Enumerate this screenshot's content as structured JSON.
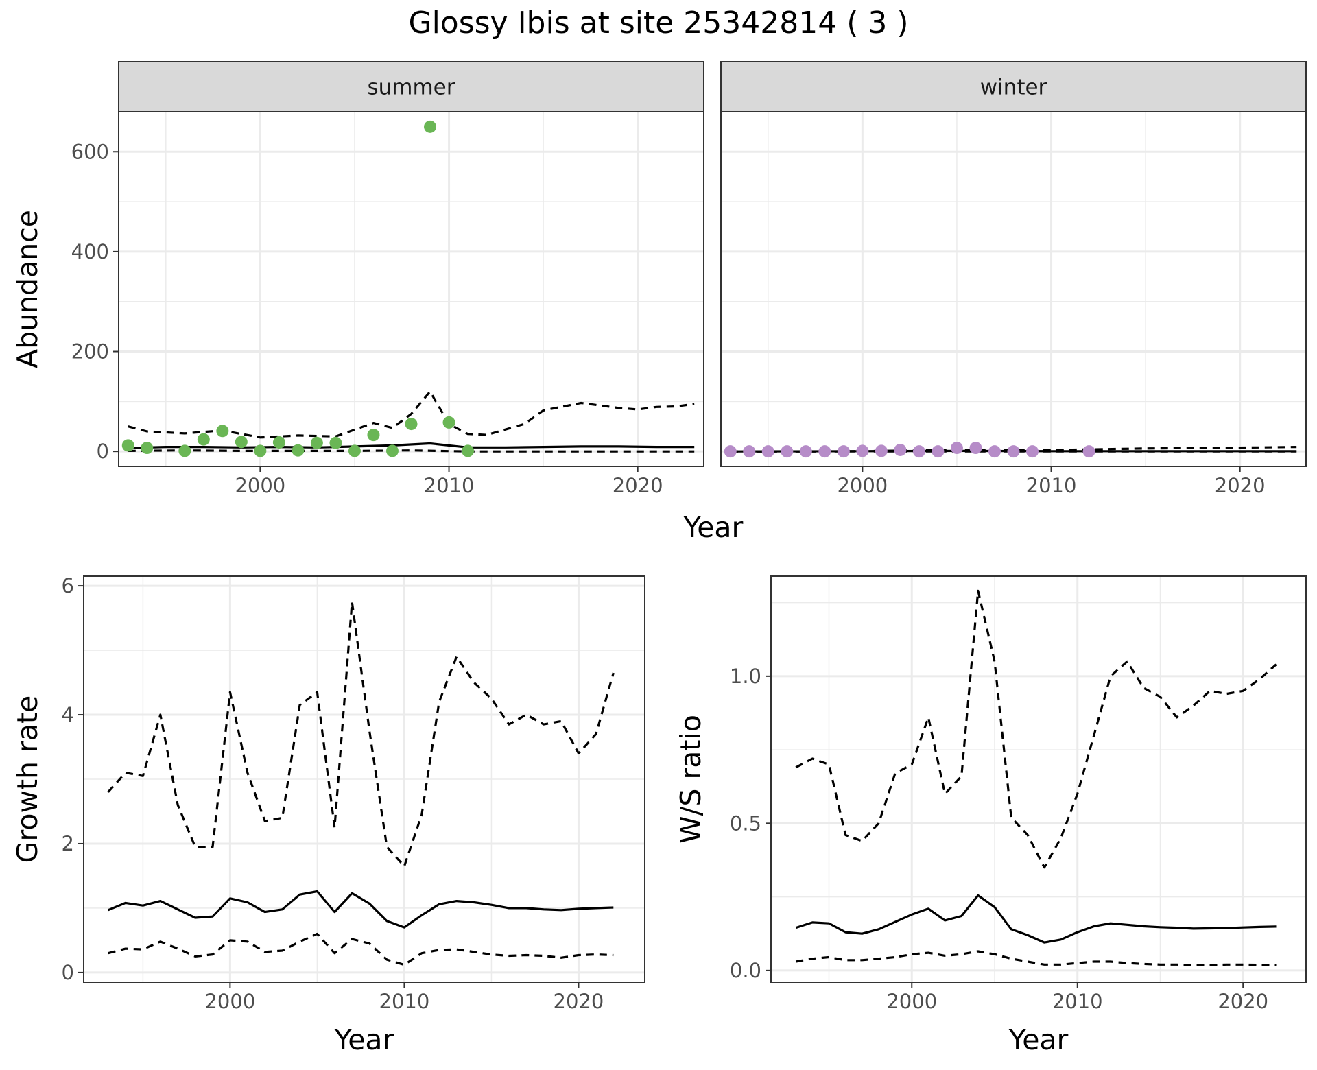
{
  "figure_title": "Glossy Ibis at site 25342814 ( 3 )",
  "colors": {
    "summer_points": "#6ab655",
    "winter_points": "#b68cc8",
    "lines": "#000000"
  },
  "chart_data": [
    {
      "type": "scatter",
      "facet": "summer",
      "title": "",
      "xlabel": "Year",
      "ylabel": "Abundance",
      "xlim": [
        1992.5,
        2023.5
      ],
      "ylim": [
        -30,
        680
      ],
      "xticks": [
        "2000",
        "2010",
        "2020"
      ],
      "yticks": [
        "0",
        "200",
        "400",
        "600"
      ],
      "grid": true,
      "points": [
        {
          "x": 1993,
          "y": 12
        },
        {
          "x": 1994,
          "y": 7
        },
        {
          "x": 1996,
          "y": 1
        },
        {
          "x": 1997,
          "y": 24
        },
        {
          "x": 1998,
          "y": 41
        },
        {
          "x": 1999,
          "y": 19
        },
        {
          "x": 2000,
          "y": 1
        },
        {
          "x": 2001,
          "y": 18
        },
        {
          "x": 2002,
          "y": 2
        },
        {
          "x": 2003,
          "y": 17
        },
        {
          "x": 2004,
          "y": 17
        },
        {
          "x": 2005,
          "y": 1
        },
        {
          "x": 2006,
          "y": 33
        },
        {
          "x": 2007,
          "y": 1
        },
        {
          "x": 2008,
          "y": 55
        },
        {
          "x": 2009,
          "y": 650
        },
        {
          "x": 2010,
          "y": 58
        },
        {
          "x": 2011,
          "y": 1
        }
      ],
      "series": [
        {
          "line": "solid",
          "x": [
            1993,
            1995,
            1997,
            1999,
            2001,
            2003,
            2005,
            2007,
            2009,
            2011,
            2013,
            2015,
            2017,
            2019,
            2021,
            2023
          ],
          "values": [
            7,
            9,
            9,
            8,
            9,
            8,
            10,
            12,
            16,
            8,
            8,
            9,
            10,
            10,
            9,
            9
          ]
        },
        {
          "line": "dashed",
          "x": [
            1993,
            1994,
            1996,
            1998,
            2000,
            2002,
            2004,
            2006,
            2007,
            2008,
            2009,
            2010,
            2011,
            2012,
            2014,
            2015,
            2017,
            2019,
            2020,
            2021,
            2022,
            2023
          ],
          "values": [
            50,
            40,
            36,
            42,
            28,
            32,
            30,
            57,
            47,
            75,
            120,
            55,
            35,
            33,
            55,
            82,
            97,
            87,
            84,
            89,
            90,
            95
          ]
        },
        {
          "line": "dashed",
          "x": [
            1993,
            1996,
            1999,
            2002,
            2005,
            2008,
            2011,
            2014,
            2017,
            2020,
            2023
          ],
          "values": [
            1,
            2,
            1,
            1,
            1,
            2,
            0,
            0,
            0,
            0,
            0
          ]
        }
      ]
    },
    {
      "type": "scatter",
      "facet": "winter",
      "title": "",
      "xlabel": "Year",
      "ylabel": "",
      "xlim": [
        1992.5,
        2023.5
      ],
      "ylim": [
        -30,
        680
      ],
      "xticks": [
        "2000",
        "2010",
        "2020"
      ],
      "yticks": [],
      "grid": true,
      "points": [
        {
          "x": 1993,
          "y": 0
        },
        {
          "x": 1994,
          "y": 0
        },
        {
          "x": 1995,
          "y": 0
        },
        {
          "x": 1996,
          "y": 0
        },
        {
          "x": 1997,
          "y": 0
        },
        {
          "x": 1998,
          "y": 0
        },
        {
          "x": 1999,
          "y": 0
        },
        {
          "x": 2000,
          "y": 1
        },
        {
          "x": 2001,
          "y": 1
        },
        {
          "x": 2002,
          "y": 3
        },
        {
          "x": 2003,
          "y": 0
        },
        {
          "x": 2004,
          "y": 0
        },
        {
          "x": 2005,
          "y": 7
        },
        {
          "x": 2006,
          "y": 7
        },
        {
          "x": 2007,
          "y": 0
        },
        {
          "x": 2008,
          "y": 0
        },
        {
          "x": 2009,
          "y": 0
        },
        {
          "x": 2012,
          "y": 0
        }
      ],
      "series": [
        {
          "line": "solid",
          "x": [
            1993,
            2000,
            2005,
            2010,
            2015,
            2020,
            2023
          ],
          "values": [
            0,
            0.5,
            1,
            0.5,
            0.5,
            0.5,
            0.5
          ]
        },
        {
          "line": "dashed",
          "x": [
            1993,
            1998,
            2003,
            2006,
            2009,
            2012,
            2015,
            2018,
            2021,
            2023
          ],
          "values": [
            0,
            0,
            2,
            3,
            2,
            4,
            6,
            7,
            8,
            9
          ]
        },
        {
          "line": "dashed",
          "x": [
            1993,
            2003,
            2013,
            2023
          ],
          "values": [
            0,
            0,
            0,
            0
          ]
        }
      ]
    },
    {
      "type": "line",
      "title": "",
      "xlabel": "Year",
      "ylabel": "Growth rate",
      "xlim": [
        1991.6,
        2023.8
      ],
      "ylim": [
        -0.15,
        6.15
      ],
      "xticks": [
        "2000",
        "2010",
        "2020"
      ],
      "yticks": [
        "0",
        "2",
        "4",
        "6"
      ],
      "grid": true,
      "x": [
        1993,
        1994,
        1995,
        1996,
        1997,
        1998,
        1999,
        2000,
        2001,
        2002,
        2003,
        2004,
        2005,
        2006,
        2007,
        2008,
        2009,
        2010,
        2011,
        2012,
        2013,
        2014,
        2015,
        2016,
        2017,
        2018,
        2019,
        2020,
        2021,
        2022
      ],
      "series": [
        {
          "line": "solid",
          "values": [
            0.97,
            1.08,
            1.04,
            1.11,
            0.98,
            0.85,
            0.87,
            1.15,
            1.09,
            0.94,
            0.98,
            1.21,
            1.26,
            0.94,
            1.23,
            1.07,
            0.8,
            0.7,
            0.89,
            1.06,
            1.11,
            1.09,
            1.05,
            1.0,
            1.0,
            0.98,
            0.97,
            0.99,
            1.0,
            1.01
          ]
        },
        {
          "line": "dashed",
          "values": [
            2.8,
            3.1,
            3.05,
            4.0,
            2.6,
            1.95,
            1.95,
            4.35,
            3.1,
            2.35,
            2.4,
            4.15,
            4.35,
            2.25,
            5.75,
            3.75,
            1.95,
            1.65,
            2.45,
            4.2,
            4.9,
            4.5,
            4.25,
            3.85,
            4.0,
            3.85,
            3.9,
            3.4,
            3.7,
            4.65
          ]
        },
        {
          "line": "dashed",
          "values": [
            0.3,
            0.37,
            0.36,
            0.48,
            0.37,
            0.25,
            0.28,
            0.5,
            0.48,
            0.32,
            0.34,
            0.48,
            0.6,
            0.3,
            0.52,
            0.45,
            0.2,
            0.12,
            0.3,
            0.35,
            0.36,
            0.32,
            0.28,
            0.26,
            0.27,
            0.26,
            0.23,
            0.27,
            0.28,
            0.27
          ]
        }
      ]
    },
    {
      "type": "line",
      "title": "",
      "xlabel": "Year",
      "ylabel": "W/S ratio",
      "xlim": [
        1991.5,
        2023.8
      ],
      "ylim": [
        -0.04,
        1.34
      ],
      "xticks": [
        "2000",
        "2010",
        "2020"
      ],
      "yticks": [
        "0.0",
        "0.5",
        "1.0"
      ],
      "grid": true,
      "x": [
        1993,
        1994,
        1995,
        1996,
        1997,
        1998,
        1999,
        2000,
        2001,
        2002,
        2003,
        2004,
        2005,
        2006,
        2007,
        2008,
        2009,
        2010,
        2011,
        2012,
        2013,
        2014,
        2015,
        2016,
        2017,
        2018,
        2019,
        2020,
        2021,
        2022
      ],
      "series": [
        {
          "line": "solid",
          "values": [
            0.145,
            0.163,
            0.16,
            0.13,
            0.125,
            0.14,
            0.165,
            0.19,
            0.21,
            0.17,
            0.185,
            0.255,
            0.215,
            0.14,
            0.12,
            0.095,
            0.105,
            0.13,
            0.15,
            0.16,
            0.155,
            0.15,
            0.147,
            0.145,
            0.142,
            0.143,
            0.144,
            0.146,
            0.148,
            0.149
          ]
        },
        {
          "line": "dashed",
          "values": [
            0.69,
            0.72,
            0.7,
            0.46,
            0.44,
            0.5,
            0.67,
            0.7,
            0.86,
            0.6,
            0.66,
            1.29,
            1.05,
            0.52,
            0.46,
            0.35,
            0.45,
            0.6,
            0.8,
            1.0,
            1.05,
            0.96,
            0.93,
            0.86,
            0.9,
            0.95,
            0.94,
            0.95,
            0.99,
            1.04
          ]
        },
        {
          "line": "dashed",
          "values": [
            0.03,
            0.04,
            0.045,
            0.035,
            0.035,
            0.04,
            0.045,
            0.055,
            0.06,
            0.05,
            0.055,
            0.065,
            0.055,
            0.04,
            0.03,
            0.02,
            0.02,
            0.025,
            0.03,
            0.03,
            0.025,
            0.022,
            0.02,
            0.02,
            0.018,
            0.018,
            0.02,
            0.02,
            0.019,
            0.018
          ]
        }
      ]
    }
  ],
  "facets": {
    "summer": "summer",
    "winter": "winter"
  }
}
